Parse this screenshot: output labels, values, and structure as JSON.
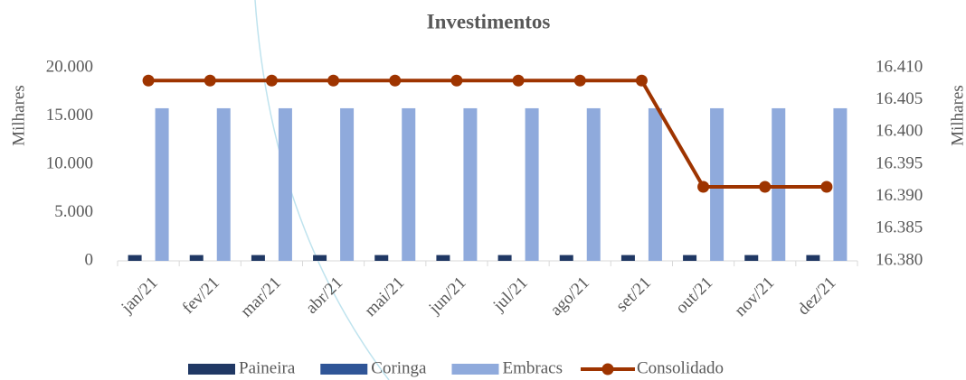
{
  "chart_data": {
    "type": "bar_line",
    "title": "Investimentos",
    "y_label": "Milhares",
    "y2_label": "Milhares",
    "categories": [
      "jan/21",
      "fev/21",
      "mar/21",
      "abr/21",
      "mai/21",
      "jun/21",
      "jul/21",
      "ago/21",
      "set/21",
      "out/21",
      "nov/21",
      "dez/21"
    ],
    "series": [
      {
        "name": "Paineira",
        "color": "#203864",
        "type": "bar",
        "values": [
          600,
          600,
          600,
          600,
          600,
          600,
          600,
          600,
          600,
          600,
          600,
          600
        ]
      },
      {
        "name": "Coringa",
        "color": "#2f5597",
        "type": "bar",
        "values": [
          0,
          0,
          0,
          0,
          0,
          0,
          0,
          0,
          0,
          0,
          0,
          0
        ]
      },
      {
        "name": "Embracs",
        "color": "#8faadc",
        "type": "bar",
        "values": [
          15800,
          15800,
          15800,
          15800,
          15800,
          15800,
          15800,
          15800,
          15800,
          15800,
          15800,
          15800
        ]
      },
      {
        "name": "Consolidado",
        "color": "#9e3400",
        "type": "line",
        "axis": "y2",
        "values": [
          16408,
          16408,
          16408,
          16408,
          16408,
          16408,
          16408,
          16408,
          16408,
          16391.5,
          16391.5,
          16391.5
        ]
      }
    ],
    "ylim": [
      0,
      20000
    ],
    "yticks": [
      0,
      {
        "value": 5000,
        "label": "5.000"
      },
      {
        "value": 10000,
        "label": "10.000"
      },
      {
        "value": 15000,
        "label": "15.000"
      },
      {
        "value": 20000,
        "label": "20.000"
      }
    ],
    "y2lim": [
      16380,
      16410
    ],
    "y2ticks": [
      {
        "value": 16380,
        "label": "16.380"
      },
      {
        "value": 16385,
        "label": "16.385"
      },
      {
        "value": 16390,
        "label": "16.390"
      },
      {
        "value": 16395,
        "label": "16.395"
      },
      {
        "value": 16400,
        "label": "16.400"
      },
      {
        "value": 16405,
        "label": "16.405"
      },
      {
        "value": 16410,
        "label": "16.410"
      }
    ],
    "legend": "bottom"
  }
}
